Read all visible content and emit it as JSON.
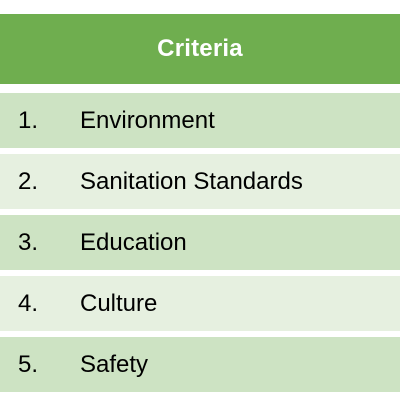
{
  "table": {
    "header": "Criteria",
    "rows": [
      {
        "num": "1.",
        "label": "Environment"
      },
      {
        "num": "2.",
        "label": "Sanitation Standards"
      },
      {
        "num": "3.",
        "label": "Education"
      },
      {
        "num": "4.",
        "label": "Culture"
      },
      {
        "num": "5.",
        "label": "Safety"
      }
    ]
  },
  "colors": {
    "header_bg": "#6fae4f",
    "row_dark": "#cde3c3",
    "row_light": "#e6f0e0"
  }
}
